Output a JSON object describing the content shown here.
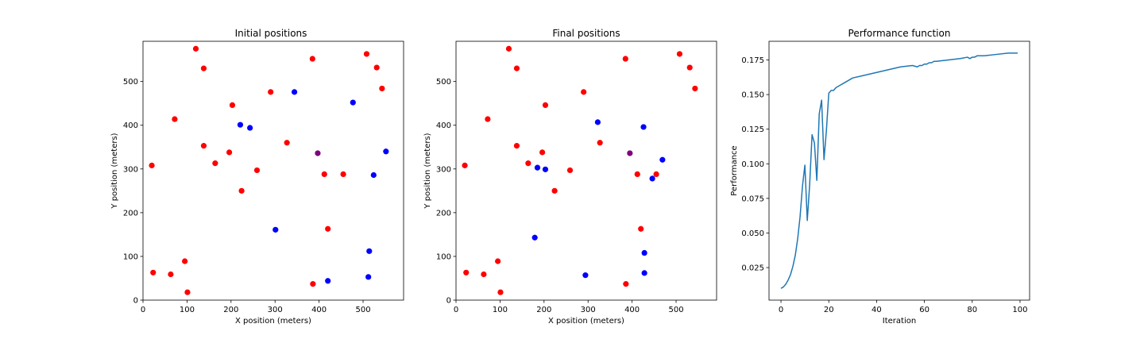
{
  "colors": {
    "red": "#ff0000",
    "blue": "#0000ff",
    "purple": "#800080",
    "line": "#1f77b4"
  },
  "chart_data": [
    {
      "type": "scatter",
      "title": "Initial positions",
      "xlabel": "X position (meters)",
      "ylabel": "Y position (meters)",
      "xlim": [
        0,
        592
      ],
      "ylim": [
        0,
        592
      ],
      "xticks": [
        0,
        100,
        200,
        300,
        400,
        500
      ],
      "yticks": [
        0,
        100,
        200,
        300,
        400,
        500
      ],
      "grid": false,
      "series": [
        {
          "color": "red",
          "points": [
            [
              120,
              575
            ],
            [
              138,
              530
            ],
            [
              72,
              414
            ],
            [
              138,
              353
            ],
            [
              20,
              308
            ],
            [
              164,
              313
            ],
            [
              196,
              338
            ],
            [
              203,
              446
            ],
            [
              290,
              476
            ],
            [
              259,
              297
            ],
            [
              327,
              360
            ],
            [
              224,
              250
            ],
            [
              385,
              552
            ],
            [
              508,
              563
            ],
            [
              531,
              532
            ],
            [
              543,
              484
            ],
            [
              412,
              288
            ],
            [
              455,
              288
            ],
            [
              420,
              163
            ],
            [
              23,
              63
            ],
            [
              63,
              59
            ],
            [
              95,
              89
            ],
            [
              101,
              18
            ],
            [
              386,
              37
            ]
          ]
        },
        {
          "color": "blue",
          "points": [
            [
              221,
              401
            ],
            [
              243,
              394
            ],
            [
              344,
              476
            ],
            [
              477,
              452
            ],
            [
              552,
              340
            ],
            [
              524,
              286
            ],
            [
              301,
              161
            ],
            [
              514,
              112
            ],
            [
              420,
              44
            ],
            [
              512,
              53
            ]
          ]
        },
        {
          "color": "purple",
          "points": [
            [
              397,
              336
            ]
          ]
        }
      ]
    },
    {
      "type": "scatter",
      "title": "Final positions",
      "xlabel": "X position (meters)",
      "ylabel": "Y position (meters)",
      "xlim": [
        0,
        592
      ],
      "ylim": [
        0,
        592
      ],
      "xticks": [
        0,
        100,
        200,
        300,
        400,
        500
      ],
      "yticks": [
        0,
        100,
        200,
        300,
        400,
        500
      ],
      "grid": false,
      "series": [
        {
          "color": "red",
          "points": [
            [
              120,
              575
            ],
            [
              138,
              530
            ],
            [
              72,
              414
            ],
            [
              138,
              353
            ],
            [
              20,
              308
            ],
            [
              164,
              313
            ],
            [
              196,
              338
            ],
            [
              203,
              446
            ],
            [
              290,
              476
            ],
            [
              259,
              297
            ],
            [
              327,
              360
            ],
            [
              224,
              250
            ],
            [
              385,
              552
            ],
            [
              508,
              563
            ],
            [
              531,
              532
            ],
            [
              543,
              484
            ],
            [
              412,
              288
            ],
            [
              455,
              288
            ],
            [
              420,
              163
            ],
            [
              23,
              63
            ],
            [
              63,
              59
            ],
            [
              95,
              89
            ],
            [
              101,
              18
            ],
            [
              386,
              37
            ]
          ]
        },
        {
          "color": "blue",
          "points": [
            [
              322,
              407
            ],
            [
              426,
              396
            ],
            [
              469,
              321
            ],
            [
              446,
              278
            ],
            [
              185,
              303
            ],
            [
              203,
              299
            ],
            [
              179,
              143
            ],
            [
              428,
              108
            ],
            [
              428,
              62
            ],
            [
              294,
              57
            ]
          ]
        },
        {
          "color": "purple",
          "points": [
            [
              395,
              336
            ]
          ]
        }
      ]
    },
    {
      "type": "line",
      "title": "Performance function",
      "xlabel": "Iteration",
      "ylabel": "Performance",
      "xlim": [
        -5,
        104
      ],
      "ylim": [
        0.0015,
        0.1885
      ],
      "xticks": [
        0,
        20,
        40,
        60,
        80,
        100
      ],
      "xticklabels": [
        "0",
        "20",
        "40",
        "60",
        "80",
        "100"
      ],
      "yticks": [
        0.025,
        0.05,
        0.075,
        0.1,
        0.125,
        0.15,
        0.175
      ],
      "yticklabels": [
        "0.025",
        "0.050",
        "0.075",
        "0.100",
        "0.125",
        "0.150",
        "0.175"
      ],
      "grid": false,
      "x": [
        0,
        1,
        2,
        3,
        4,
        5,
        6,
        7,
        8,
        9,
        10,
        11,
        12,
        13,
        14,
        15,
        16,
        17,
        18,
        19,
        20,
        21,
        22,
        23,
        24,
        25,
        26,
        27,
        28,
        29,
        30,
        35,
        40,
        45,
        50,
        55,
        57,
        58,
        59,
        60,
        61,
        62,
        63,
        64,
        65,
        70,
        75,
        78,
        79,
        80,
        81,
        82,
        83,
        84,
        85,
        90,
        95,
        99
      ],
      "y": [
        0.01,
        0.011,
        0.013,
        0.016,
        0.02,
        0.026,
        0.034,
        0.046,
        0.062,
        0.084,
        0.099,
        0.059,
        0.085,
        0.121,
        0.115,
        0.088,
        0.136,
        0.146,
        0.103,
        0.124,
        0.151,
        0.153,
        0.153,
        0.155,
        0.156,
        0.157,
        0.158,
        0.159,
        0.16,
        0.161,
        0.162,
        0.164,
        0.166,
        0.168,
        0.17,
        0.171,
        0.17,
        0.171,
        0.171,
        0.172,
        0.172,
        0.173,
        0.173,
        0.174,
        0.174,
        0.175,
        0.176,
        0.177,
        0.176,
        0.177,
        0.177,
        0.178,
        0.178,
        0.178,
        0.178,
        0.179,
        0.18,
        0.18
      ]
    }
  ]
}
